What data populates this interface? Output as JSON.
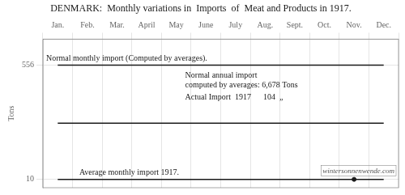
{
  "chart_data": {
    "type": "line",
    "title": "DENMARK:  Monthly variations in  Imports  of  Meat and Products in 1917.",
    "y_label": "Tons",
    "categories": [
      "Jan.",
      "Feb.",
      "Mar.",
      "April",
      "May",
      "June",
      "July",
      "Aug.",
      "Sept.",
      "Oct.",
      "Nov.",
      "Dec."
    ],
    "series": [
      {
        "color": "#1a1a1a",
        "values": [
          556,
          556,
          556,
          556,
          556,
          556,
          556,
          556,
          556,
          556,
          556,
          556
        ]
      },
      {
        "color": "#1a1a1a",
        "values": [
          278,
          278,
          278,
          278,
          278,
          278,
          278,
          278,
          278,
          278,
          278,
          278
        ]
      },
      {
        "color": "#1a1a1a",
        "values": [
          10,
          10,
          10,
          10,
          10,
          10,
          10,
          10,
          10,
          10,
          10,
          10
        ]
      },
      {
        "type": "scatter",
        "marker": "circle",
        "color": "#1a1a1a",
        "values": [
          null,
          null,
          null,
          null,
          null,
          null,
          null,
          null,
          null,
          null,
          10,
          null
        ]
      }
    ],
    "annotations": [
      "Normal monthly import (Computed by averages).",
      [
        "Normal annual import",
        "computed by averages: 6,678 Tons"
      ],
      "Actual Import  1917      104  „",
      "Average monthly import 1917.",
      "wintersonnenwende.com"
    ],
    "ylim": [
      -30,
      680
    ],
    "yticks": [
      10,
      556
    ],
    "grid": true
  }
}
